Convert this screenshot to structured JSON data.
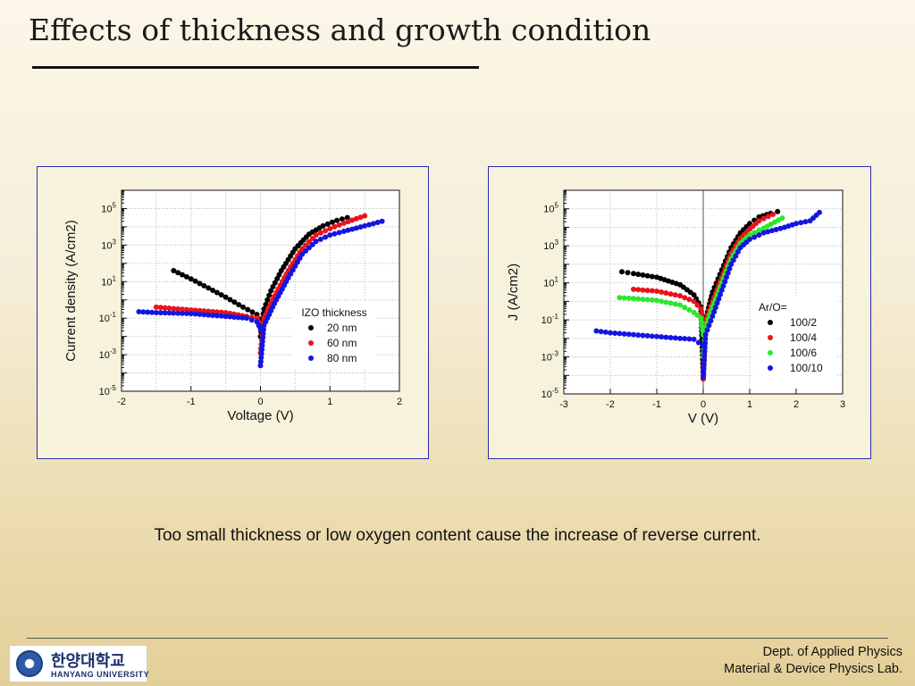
{
  "title": "Effects of thickness and growth condition",
  "caption": "Too small thickness or low oxygen content cause the increase of reverse current.",
  "footer": {
    "line1": "Dept. of Applied Physics",
    "line2": "Material & Device Physics Lab.",
    "logo_korean": "한양대학교",
    "logo_english": "HANYANG UNIVERSITY"
  },
  "colors": {
    "panel_border": "#2b2ba8",
    "black": "#000000",
    "red": "#e8141b",
    "green": "#2ee62e",
    "blue": "#1515e0"
  },
  "chart_data": [
    {
      "type": "scatter",
      "xlabel": "Voltage (V)",
      "ylabel": "Current density (A/cm2)",
      "xlim": [
        -2,
        2
      ],
      "ylog": true,
      "ylim_exp": [
        -5,
        6
      ],
      "x_ticks": [
        "-2",
        "-1",
        "0",
        "1",
        "2"
      ],
      "y_ticks_exp": [
        "-5",
        "-3",
        "-1",
        "1",
        "3",
        "5"
      ],
      "grid": true,
      "zero_line": false,
      "legend": {
        "title": "IZO thickness",
        "position": "center-right"
      },
      "series": [
        {
          "name": "20 nm",
          "color": "#000000",
          "log10_points": [
            [
              -1.25,
              1.6
            ],
            [
              -1.0,
              1.15
            ],
            [
              -0.75,
              0.65
            ],
            [
              -0.5,
              0.15
            ],
            [
              -0.25,
              -0.4
            ],
            [
              -0.05,
              -0.8
            ],
            [
              0.0,
              -1.3
            ],
            [
              0.0,
              -2.0
            ],
            [
              0.05,
              -0.5
            ],
            [
              0.15,
              0.5
            ],
            [
              0.3,
              1.6
            ],
            [
              0.5,
              2.8
            ],
            [
              0.7,
              3.6
            ],
            [
              0.9,
              4.05
            ],
            [
              1.1,
              4.35
            ],
            [
              1.25,
              4.5
            ]
          ]
        },
        {
          "name": "60 nm",
          "color": "#e8141b",
          "log10_points": [
            [
              -1.5,
              -0.4
            ],
            [
              -1.0,
              -0.55
            ],
            [
              -0.5,
              -0.7
            ],
            [
              -0.2,
              -0.9
            ],
            [
              -0.05,
              -1.0
            ],
            [
              0.0,
              -1.4
            ],
            [
              0.0,
              -2.9
            ],
            [
              0.05,
              -1.0
            ],
            [
              0.2,
              0.2
            ],
            [
              0.4,
              1.6
            ],
            [
              0.6,
              2.8
            ],
            [
              0.8,
              3.55
            ],
            [
              1.0,
              3.9
            ],
            [
              1.2,
              4.2
            ],
            [
              1.5,
              4.6
            ]
          ]
        },
        {
          "name": "80 nm",
          "color": "#1515e0",
          "log10_points": [
            [
              -1.75,
              -0.65
            ],
            [
              -1.5,
              -0.7
            ],
            [
              -1.0,
              -0.75
            ],
            [
              -0.5,
              -0.9
            ],
            [
              -0.2,
              -1.0
            ],
            [
              -0.05,
              -1.2
            ],
            [
              0.0,
              -1.6
            ],
            [
              0.0,
              -3.6
            ],
            [
              0.05,
              -1.4
            ],
            [
              0.2,
              -0.2
            ],
            [
              0.4,
              1.2
            ],
            [
              0.6,
              2.5
            ],
            [
              0.8,
              3.2
            ],
            [
              1.0,
              3.55
            ],
            [
              1.2,
              3.75
            ],
            [
              1.5,
              4.05
            ],
            [
              1.75,
              4.3
            ]
          ]
        }
      ]
    },
    {
      "type": "scatter",
      "xlabel": "V (V)",
      "ylabel": "J (A/cm2)",
      "xlim": [
        -3,
        3
      ],
      "ylog": true,
      "ylim_exp": [
        -5,
        6
      ],
      "x_ticks": [
        "-3",
        "-2",
        "-1",
        "0",
        "1",
        "2",
        "3"
      ],
      "y_ticks_exp": [
        "-5",
        "-3",
        "-1",
        "1",
        "3",
        "5"
      ],
      "grid": true,
      "zero_line": true,
      "legend": {
        "title": "Ar/O=",
        "position": "center-right"
      },
      "series": [
        {
          "name": "100/2",
          "color": "#000000",
          "log10_points": [
            [
              -1.75,
              1.6
            ],
            [
              -1.5,
              1.5
            ],
            [
              -1.0,
              1.3
            ],
            [
              -0.5,
              0.9
            ],
            [
              -0.2,
              0.35
            ],
            [
              -0.05,
              -0.3
            ],
            [
              0.0,
              -4.0
            ],
            [
              0.05,
              -1.0
            ],
            [
              0.2,
              0.5
            ],
            [
              0.4,
              1.7
            ],
            [
              0.6,
              2.9
            ],
            [
              0.8,
              3.7
            ],
            [
              1.0,
              4.2
            ],
            [
              1.2,
              4.55
            ],
            [
              1.45,
              4.75
            ],
            [
              1.6,
              4.85
            ]
          ]
        },
        {
          "name": "100/4",
          "color": "#e8141b",
          "log10_points": [
            [
              -1.5,
              0.65
            ],
            [
              -1.0,
              0.55
            ],
            [
              -0.5,
              0.3
            ],
            [
              -0.2,
              0.0
            ],
            [
              -0.05,
              -0.4
            ],
            [
              0.0,
              -1.2
            ],
            [
              0.0,
              -4.2
            ],
            [
              0.05,
              -1.0
            ],
            [
              0.2,
              0.0
            ],
            [
              0.4,
              1.3
            ],
            [
              0.6,
              2.6
            ],
            [
              0.8,
              3.4
            ],
            [
              1.0,
              3.9
            ],
            [
              1.2,
              4.35
            ],
            [
              1.5,
              4.7
            ]
          ]
        },
        {
          "name": "100/6",
          "color": "#2ee62e",
          "log10_points": [
            [
              -1.8,
              0.2
            ],
            [
              -1.5,
              0.15
            ],
            [
              -1.0,
              0.05
            ],
            [
              -0.5,
              -0.2
            ],
            [
              -0.2,
              -0.6
            ],
            [
              -0.05,
              -0.9
            ],
            [
              0.0,
              -1.8
            ],
            [
              0.0,
              -3.0
            ],
            [
              0.05,
              -1.4
            ],
            [
              0.2,
              -0.3
            ],
            [
              0.4,
              1.0
            ],
            [
              0.6,
              2.3
            ],
            [
              0.8,
              3.15
            ],
            [
              1.0,
              3.6
            ],
            [
              1.3,
              3.95
            ],
            [
              1.7,
              4.5
            ]
          ]
        },
        {
          "name": "100/10",
          "color": "#1515e0",
          "log10_points": [
            [
              -2.3,
              -1.6
            ],
            [
              -2.0,
              -1.7
            ],
            [
              -1.5,
              -1.8
            ],
            [
              -1.0,
              -1.9
            ],
            [
              -0.5,
              -2.0
            ],
            [
              -0.2,
              -2.05
            ],
            [
              0.0,
              -2.4
            ],
            [
              0.0,
              -4.1
            ],
            [
              0.05,
              -1.8
            ],
            [
              0.2,
              -0.8
            ],
            [
              0.4,
              0.6
            ],
            [
              0.6,
              2.0
            ],
            [
              0.8,
              2.9
            ],
            [
              1.0,
              3.35
            ],
            [
              1.3,
              3.7
            ],
            [
              1.75,
              4.0
            ],
            [
              2.0,
              4.2
            ],
            [
              2.3,
              4.35
            ],
            [
              2.5,
              4.8
            ]
          ]
        }
      ]
    }
  ]
}
